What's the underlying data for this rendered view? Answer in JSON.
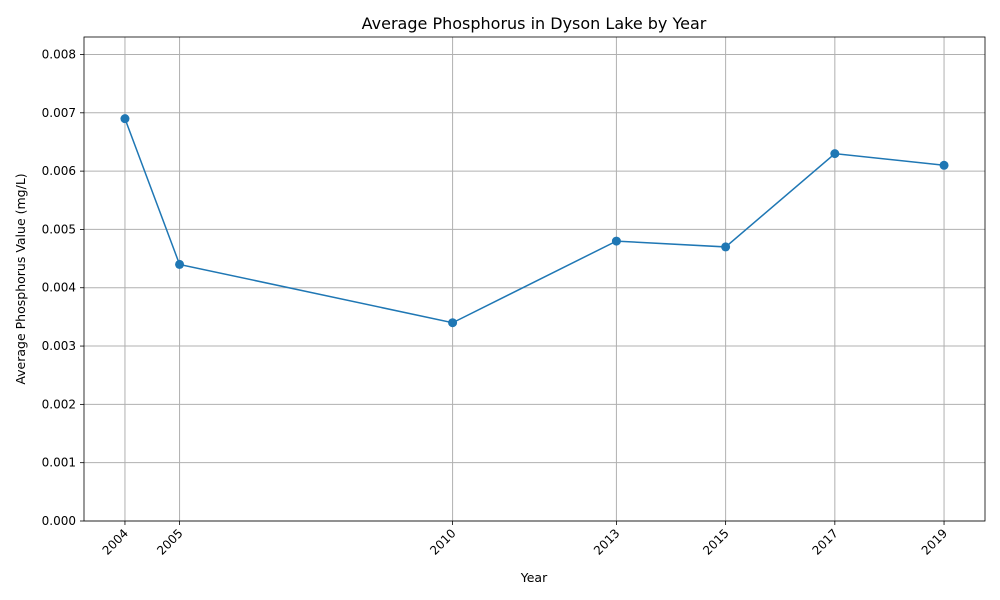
{
  "chart_data": {
    "type": "line",
    "title": "Average Phosphorus in Dyson Lake by Year",
    "xlabel": "Year",
    "ylabel": "Average Phosphorus Value (mg/L)",
    "x": [
      2004,
      2005,
      2010,
      2013,
      2015,
      2017,
      2019
    ],
    "x_tick_labels": [
      "2004",
      "2005",
      "2010",
      "2013",
      "2015",
      "2017",
      "2019"
    ],
    "series": [
      {
        "values": [
          0.0069,
          0.0044,
          0.0034,
          0.0048,
          0.0047,
          0.0063,
          0.0061
        ]
      }
    ],
    "xlim": [
      2003.25,
      2019.75
    ],
    "ylim": [
      0,
      0.0083
    ],
    "y_ticks": [
      0.0,
      0.001,
      0.002,
      0.003,
      0.004,
      0.005,
      0.006,
      0.007,
      0.008
    ],
    "y_tick_labels": [
      "0.000",
      "0.001",
      "0.002",
      "0.003",
      "0.004",
      "0.005",
      "0.006",
      "0.007",
      "0.008"
    ],
    "grid": true,
    "line_color": "#1f77b4",
    "marker": "circle"
  }
}
